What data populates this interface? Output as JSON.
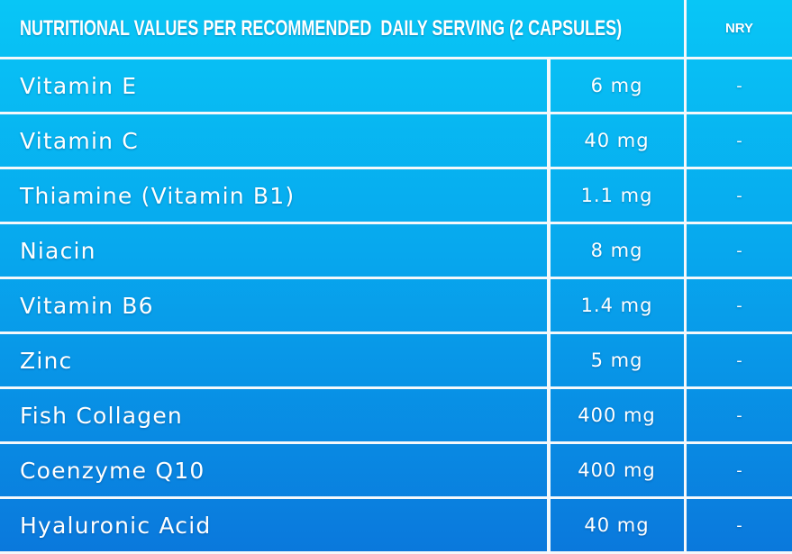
{
  "header": {
    "title": "NUTRITIONAL VALUES PER RECOMMENDED  DAILY SERVING (2 CAPSULES)",
    "nry": "NRY"
  },
  "table": {
    "rows": [
      [
        "Vitamin E",
        "6 mg",
        "-"
      ],
      [
        "Vitamin C",
        "40 mg",
        "-"
      ],
      [
        "Thiamine (Vitamin B1)",
        "1.1 mg",
        "-"
      ],
      [
        "Niacin",
        "8 mg",
        "-"
      ],
      [
        "Vitamin B6",
        "1.4 mg",
        "-"
      ],
      [
        "Zinc",
        "5 mg",
        "-"
      ],
      [
        "Fish Collagen",
        "400 mg",
        "-"
      ],
      [
        "Coenzyme Q10",
        "400 mg",
        "-"
      ],
      [
        "Hyaluronic Acid",
        "40 mg",
        "-"
      ]
    ]
  }
}
